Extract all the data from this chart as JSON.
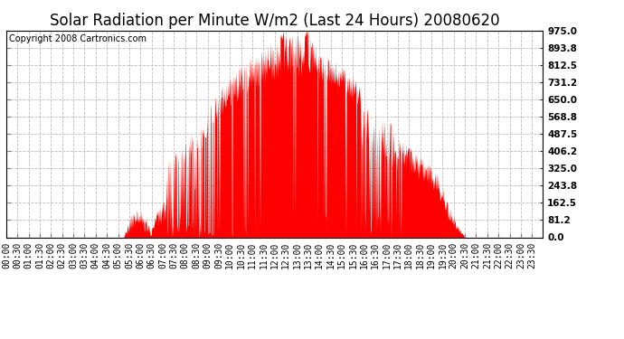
{
  "title": "Solar Radiation per Minute W/m2 (Last 24 Hours) 20080620",
  "copyright": "Copyright 2008 Cartronics.com",
  "yticks": [
    0.0,
    81.2,
    162.5,
    243.8,
    325.0,
    406.2,
    487.5,
    568.8,
    650.0,
    731.2,
    812.5,
    893.8,
    975.0
  ],
  "ymax": 975.0,
  "ymin": 0.0,
  "bar_color": "#FF0000",
  "background_color": "#FFFFFF",
  "plot_bg_color": "#FFFFFF",
  "grid_color": "#BBBBBB",
  "dashed_line_color": "#FF0000",
  "title_fontsize": 12,
  "copyright_fontsize": 7,
  "tick_fontsize": 7.5,
  "sunrise_min": 315,
  "sunset_min": 1230,
  "solar_noon_min": 780,
  "peak_value": 860
}
